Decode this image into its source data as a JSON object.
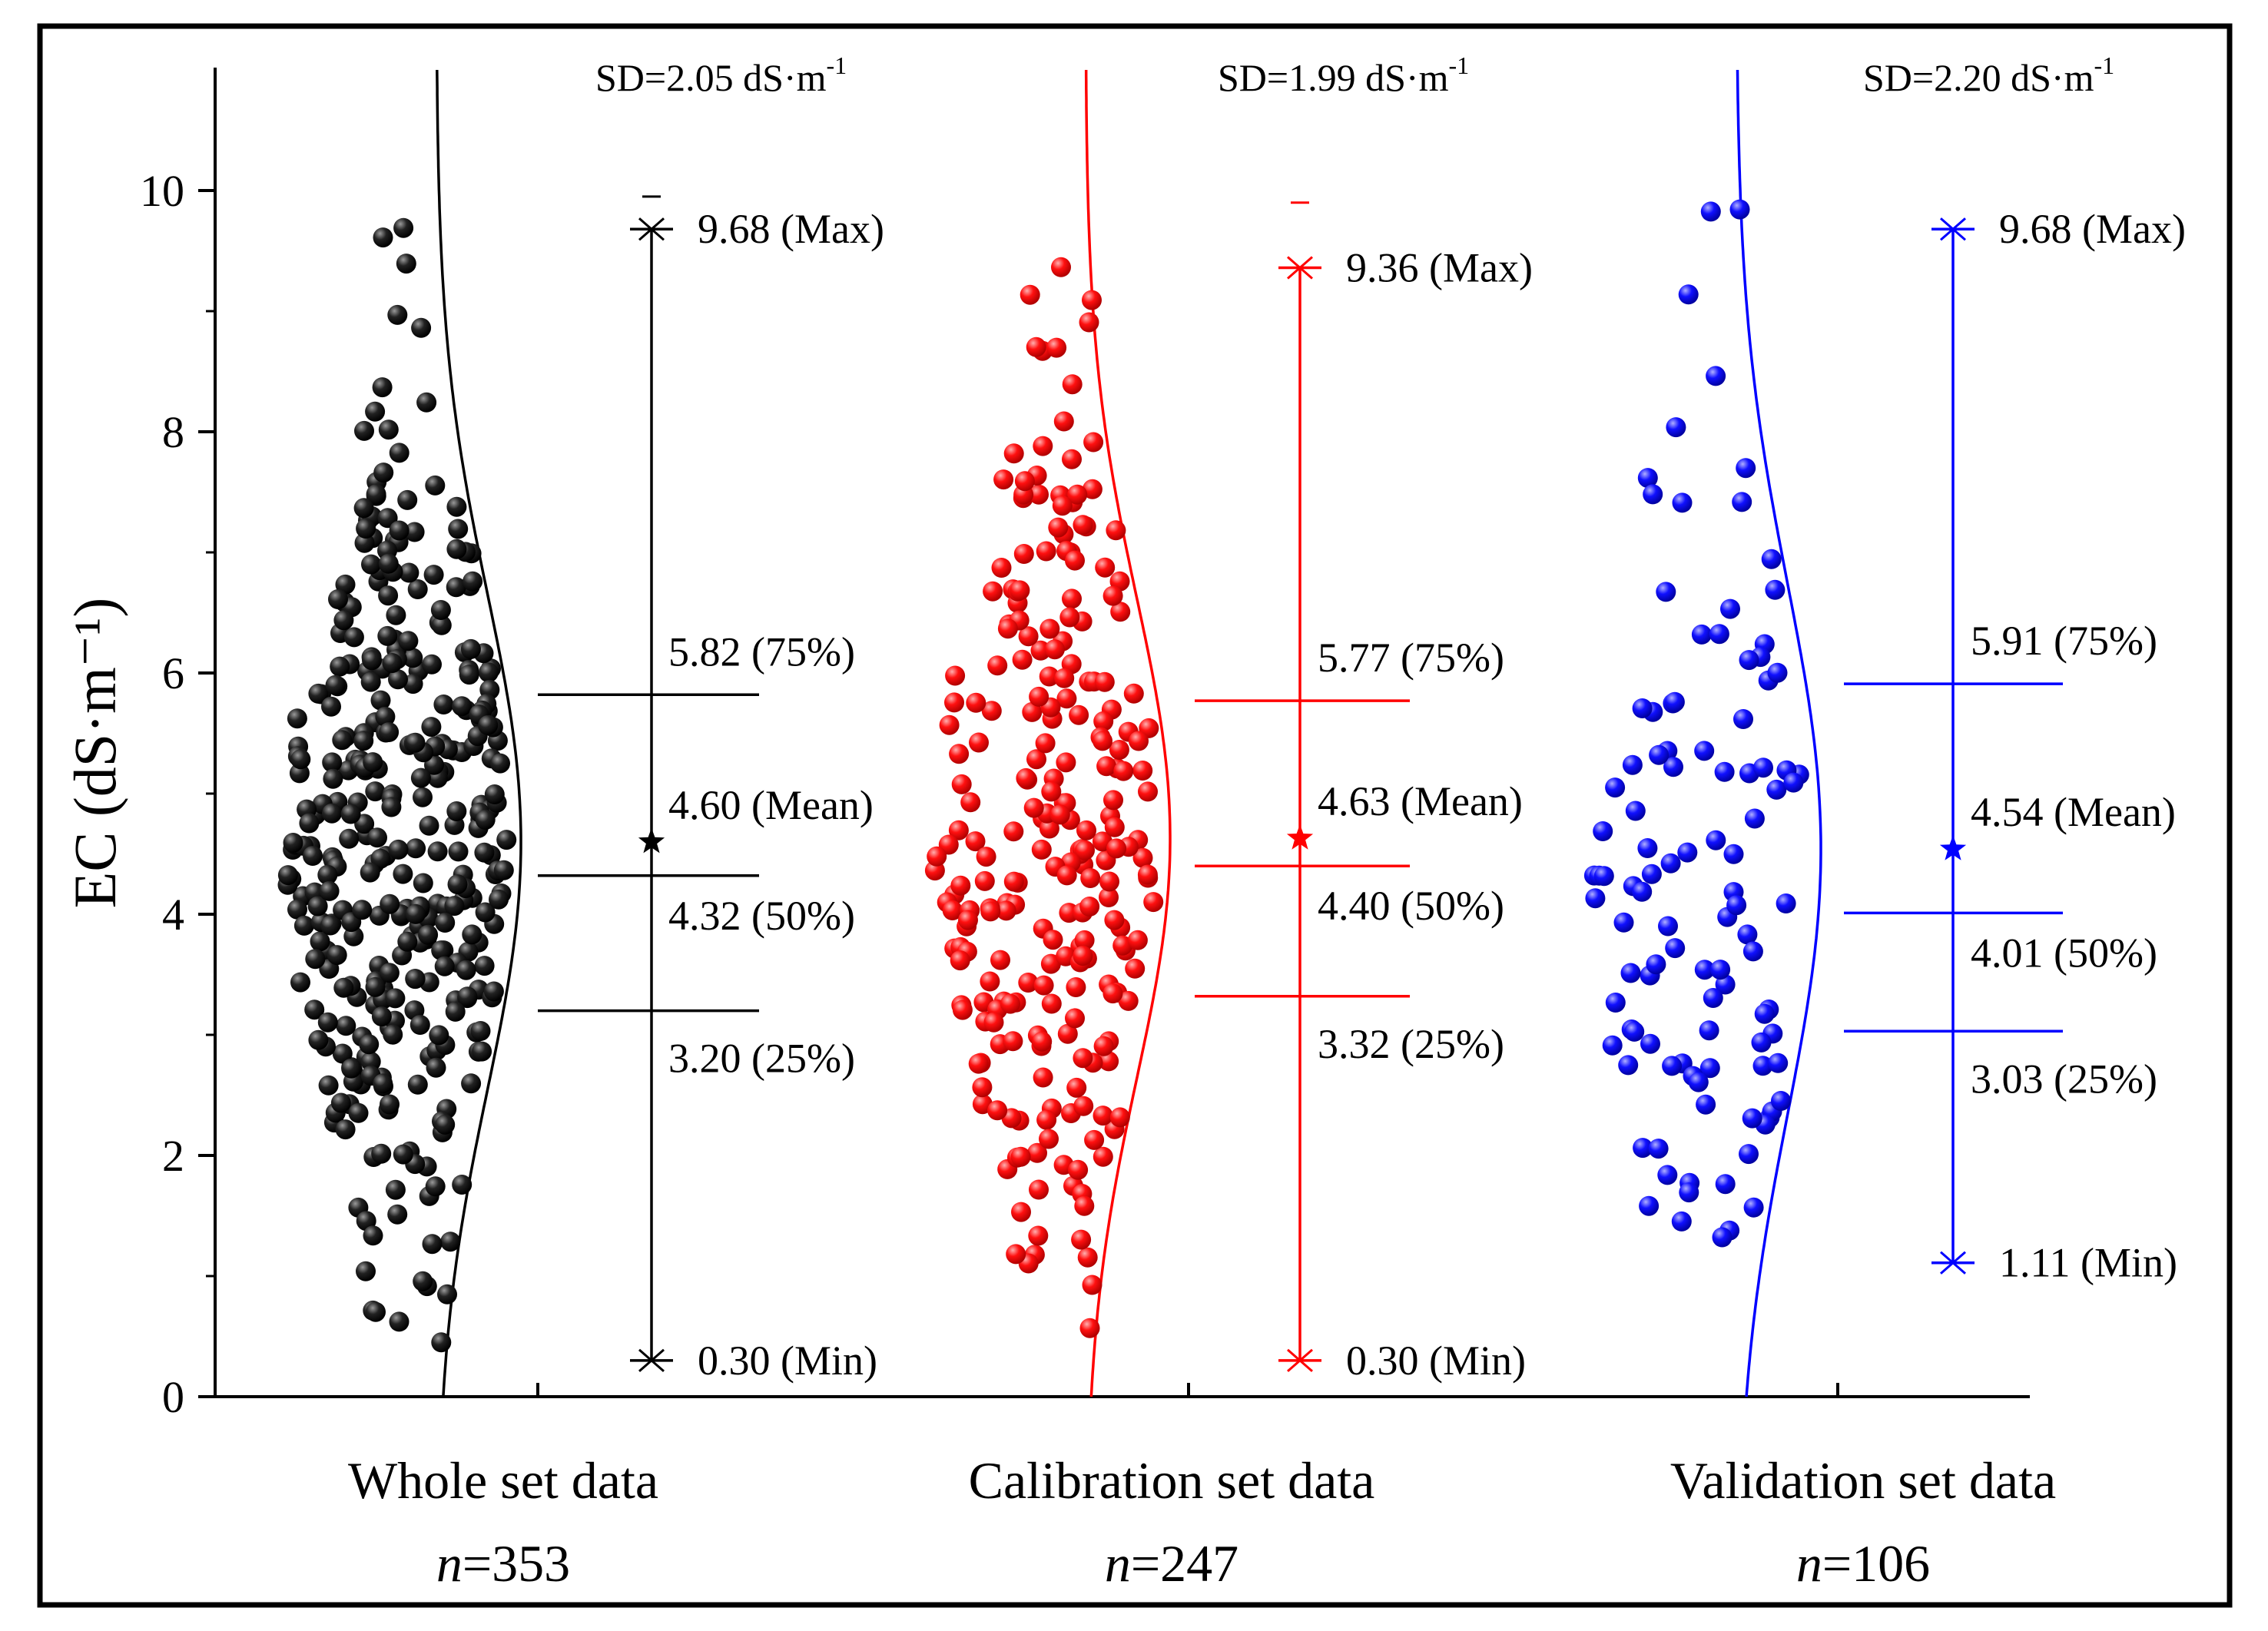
{
  "chart_data": {
    "type": "scatter",
    "ylabel": "EC (dS·m⁻¹)",
    "ylim": [
      0,
      11
    ],
    "yticks": [
      "0",
      "2",
      "4",
      "6",
      "8",
      "10"
    ],
    "ytick_values": [
      0,
      2,
      4,
      6,
      8,
      10
    ],
    "series": [
      {
        "name": "Whole set data",
        "n_label": "n",
        "n_value": "=353",
        "n": 353,
        "color": "#000000",
        "sd_label": "SD=2.05 dS·m",
        "sd_exp": "-1",
        "sd": 2.05,
        "max": 9.68,
        "q75": 5.82,
        "mean": 4.6,
        "median": 4.32,
        "q25": 3.2,
        "min": 0.3,
        "max_label": "9.68 (Max)",
        "q75_label": "5.82 (75%)",
        "mean_label": "4.60 (Mean)",
        "median_label": "4.32 (50%)",
        "q25_label": "3.20 (25%)",
        "min_label": "0.30 (Min)",
        "outlier_mark": 9.95
      },
      {
        "name": "Calibration set data",
        "n_label": "n",
        "n_value": "=247",
        "n": 247,
        "color": "#ff0000",
        "sd_label": "SD=1.99 dS·m",
        "sd_exp": "-1",
        "sd": 1.99,
        "max": 9.36,
        "q75": 5.77,
        "mean": 4.63,
        "median": 4.4,
        "q25": 3.32,
        "min": 0.3,
        "max_label": "9.36 (Max)",
        "q75_label": "5.77 (75%)",
        "mean_label": "4.63 (Mean)",
        "median_label": "4.40 (50%)",
        "q25_label": "3.32 (25%)",
        "min_label": "0.30 (Min)",
        "outlier_mark": 9.9
      },
      {
        "name": "Validation set data",
        "n_label": "n",
        "n_value": "=106",
        "n": 106,
        "color": "#0000ff",
        "sd_label": "SD=2.20 dS·m",
        "sd_exp": "-1",
        "sd": 2.2,
        "max": 9.68,
        "q75": 5.91,
        "mean": 4.54,
        "median": 4.01,
        "q25": 3.03,
        "min": 1.11,
        "max_label": "9.68 (Max)",
        "q75_label": "5.91 (75%)",
        "mean_label": "4.54 (Mean)",
        "median_label": "4.01 (50%)",
        "q25_label": "3.03 (25%)",
        "min_label": "1.11 (Min)",
        "outlier_mark": null
      }
    ]
  }
}
